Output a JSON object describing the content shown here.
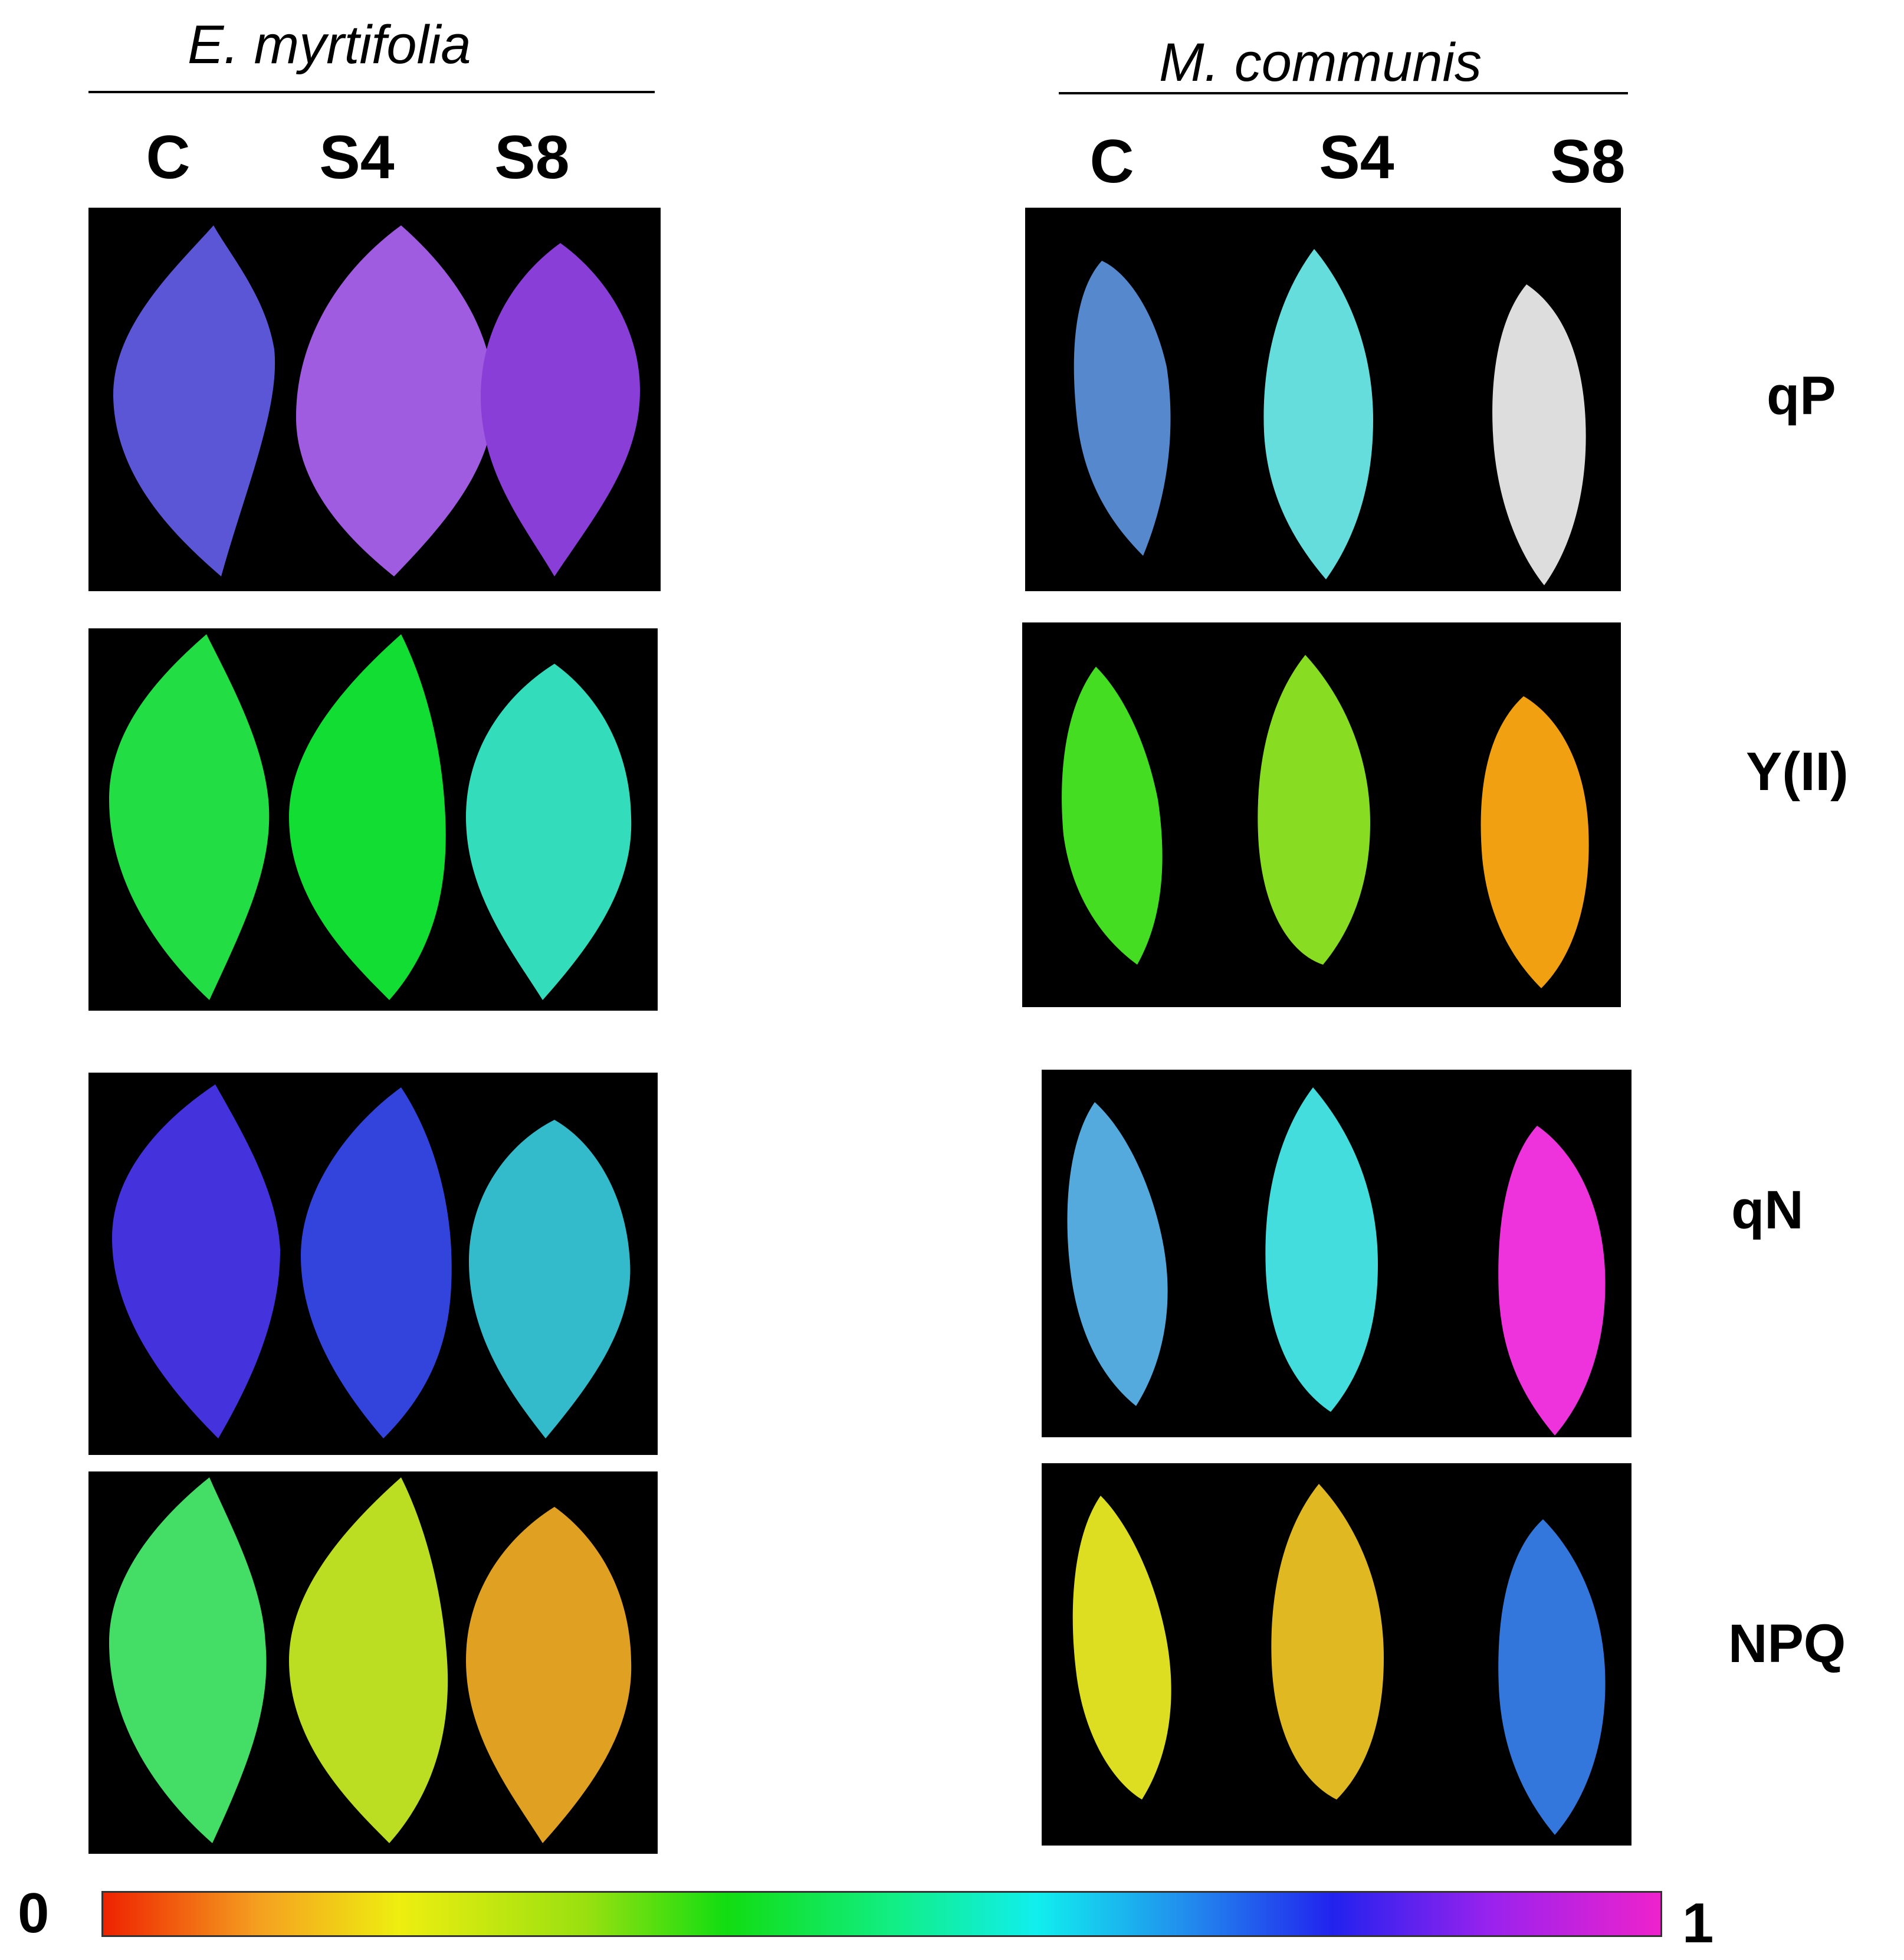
{
  "species": [
    {
      "name": "E. myrtifolia",
      "columns": [
        "C",
        "S4",
        "S8"
      ]
    },
    {
      "name": "M. communis",
      "columns": [
        "C",
        "S4",
        "S8"
      ]
    }
  ],
  "rows": [
    "qP",
    "Y(II)",
    "qN",
    "NPQ"
  ],
  "colorbar": {
    "min_label": "0",
    "max_label": "1"
  },
  "leaf_colors": {
    "em_qP": [
      "#5a56d6",
      "#a05ce0",
      "#8a3ed8"
    ],
    "em_YII": [
      "#22dd44",
      "#11dd33",
      "#33ddbb"
    ],
    "em_qN": [
      "#4433dd",
      "#3344dd",
      "#33bbcc"
    ],
    "em_NPQ": [
      "#44dd66",
      "#bbdd22",
      "#e0a022"
    ],
    "mc_qP": [
      "#5588cc",
      "#66dddd",
      "#dddddd"
    ],
    "mc_YII": [
      "#44dd22",
      "#88dd22",
      "#f0a010"
    ],
    "mc_qN": [
      "#55aadd",
      "#44dddd",
      "#ee33dd"
    ],
    "mc_NPQ": [
      "#dddd22",
      "#e0b822",
      "#3377dd"
    ]
  }
}
